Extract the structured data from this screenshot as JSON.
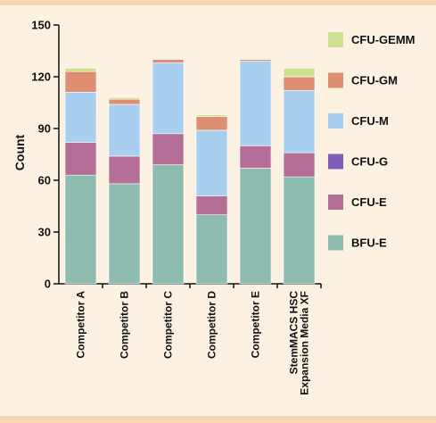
{
  "chart_data": {
    "type": "bar",
    "stacked": true,
    "ylabel": "Count",
    "xlabel": "",
    "ylim": [
      0,
      150
    ],
    "yticks": [
      0,
      30,
      60,
      90,
      120,
      150
    ],
    "grid": false,
    "legend_position": "right",
    "categories": [
      [
        "Competitor A"
      ],
      [
        "Competitor B"
      ],
      [
        "Competitor C"
      ],
      [
        "Competitor D"
      ],
      [
        "Competitor E"
      ],
      [
        "StemMACS HSC",
        "Expansion Media XF"
      ]
    ],
    "series": [
      {
        "name": "BFU-E",
        "color": "#8dbbb0",
        "values": [
          63,
          58,
          69,
          40,
          67,
          62
        ]
      },
      {
        "name": "CFU-E",
        "color": "#b56e95",
        "values": [
          19,
          16,
          18,
          11,
          13,
          14
        ]
      },
      {
        "name": "CFU-G",
        "color": "#7d5fb6",
        "values": [
          0,
          0,
          0,
          0,
          0,
          0
        ]
      },
      {
        "name": "CFU-M",
        "color": "#a8cff0",
        "values": [
          29,
          30,
          41,
          38,
          49,
          36
        ]
      },
      {
        "name": "CFU-GM",
        "color": "#de8f72",
        "values": [
          12,
          3,
          2,
          8,
          1,
          8
        ]
      },
      {
        "name": "CFU-GEMM",
        "color": "#cfe190",
        "values": [
          2,
          1,
          0,
          1,
          0,
          5
        ]
      }
    ],
    "legend_order": [
      "CFU-GEMM",
      "CFU-GM",
      "CFU-M",
      "CFU-G",
      "CFU-E",
      "BFU-E"
    ]
  }
}
